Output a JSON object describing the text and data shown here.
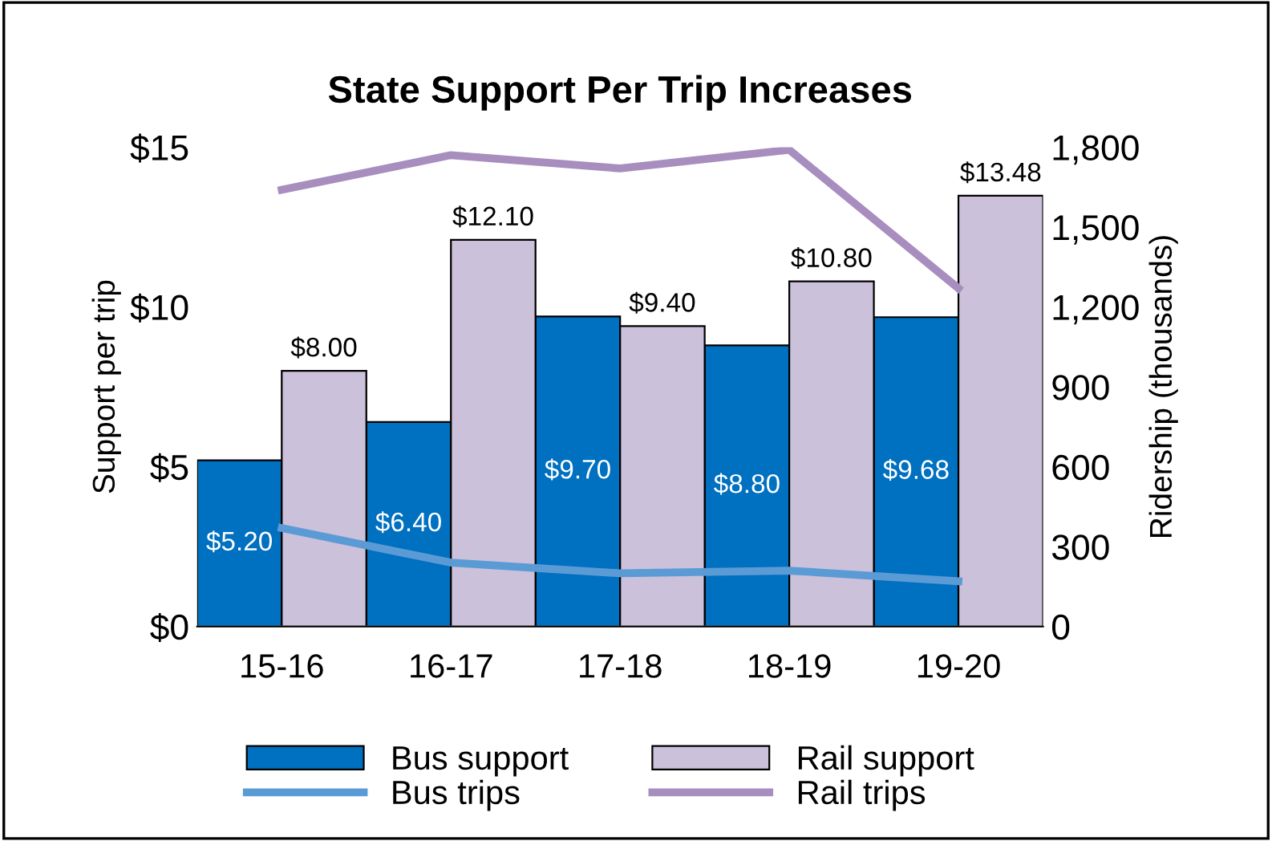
{
  "chart_data": {
    "type": "bar",
    "title": "State Support Per Trip Increases",
    "ylabel": "Support per trip",
    "y2label": "Ridership (thousands)",
    "categories": [
      "15-16",
      "16-17",
      "17-18",
      "18-19",
      "19-20"
    ],
    "series": [
      {
        "name": "Bus support",
        "color": "#0070c0",
        "values": [
          5.2,
          6.4,
          9.7,
          8.8,
          9.68
        ],
        "value_labels": [
          "$5.20",
          "$6.40",
          "$9.70",
          "$8.80",
          "$9.68"
        ]
      },
      {
        "name": "Rail support",
        "color": "#ccc1da",
        "values": [
          8.0,
          12.1,
          9.4,
          10.8,
          13.48
        ],
        "value_labels": [
          "$8.00",
          "$12.10",
          "$9.40",
          "$10.80",
          "$13.48"
        ]
      },
      {
        "name": "Bus trips",
        "type": "line",
        "axis": "y2",
        "color": "#5b9bd5",
        "values": [
          370,
          240,
          200,
          210,
          170
        ]
      },
      {
        "name": "Rail trips",
        "type": "line",
        "axis": "y2",
        "color": "#a88dbf",
        "values": [
          1640,
          1770,
          1720,
          1790,
          1270
        ]
      }
    ],
    "ylim": [
      0,
      15
    ],
    "yticks": [
      {
        "value": 0,
        "label": "$0"
      },
      {
        "value": 5,
        "label": "$5"
      },
      {
        "value": 10,
        "label": "$10"
      },
      {
        "value": 15,
        "label": "$15"
      }
    ],
    "y2lim": [
      0,
      1800
    ],
    "y2ticks": [
      {
        "value": 0,
        "label": "0"
      },
      {
        "value": 300,
        "label": "300"
      },
      {
        "value": 600,
        "label": "600"
      },
      {
        "value": 900,
        "label": "900"
      },
      {
        "value": 1200,
        "label": "1,200"
      },
      {
        "value": 1500,
        "label": "1,500"
      },
      {
        "value": 1800,
        "label": "1,800"
      }
    ],
    "grid": false,
    "legend": "bottom",
    "marker": "none",
    "line_style": "solid"
  }
}
